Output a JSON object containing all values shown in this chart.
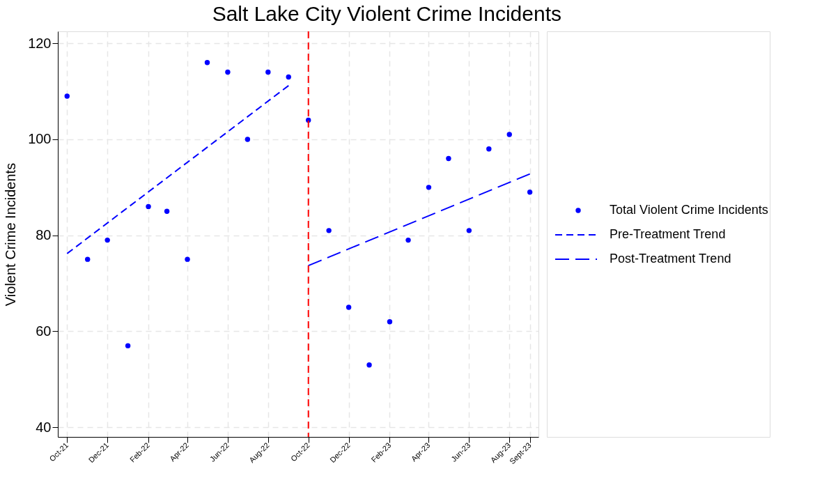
{
  "chart_data": {
    "type": "scatter",
    "title": "Salt Lake City Violent Crime Incidents",
    "ylabel": "Violent Crime Incidents",
    "x": [
      "2021-10",
      "2021-11",
      "2021-12",
      "2022-01",
      "2022-02",
      "2022-03",
      "2022-04",
      "2022-05",
      "2022-06",
      "2022-07",
      "2022-08",
      "2022-09",
      "2022-10",
      "2022-11",
      "2022-12",
      "2023-01",
      "2023-02",
      "2023-03",
      "2023-04",
      "2023-05",
      "2023-06",
      "2023-07",
      "2023-08",
      "2023-09"
    ],
    "series": [
      {
        "name": "Total Violent Crime Incidents",
        "color": "#0000ff",
        "marker": "circle",
        "values": [
          109,
          75,
          79,
          57,
          86,
          85,
          75,
          116,
          114,
          100,
          114,
          113,
          104,
          81,
          65,
          53,
          62,
          79,
          90,
          96,
          81,
          98,
          101,
          89
        ]
      },
      {
        "name": "Pre-Treatment Trend",
        "type": "line",
        "color": "#0000ff",
        "line_style": "dashed",
        "x": [
          "2021-10",
          "2022-09"
        ],
        "values": [
          76.2,
          111.2
        ]
      },
      {
        "name": "Post-Treatment Trend",
        "type": "line",
        "color": "#0000ff",
        "line_style": "dashed",
        "x": [
          "2022-10",
          "2023-09"
        ],
        "values": [
          73.7,
          92.8
        ]
      }
    ],
    "xlim": [
      "2021-09-17",
      "2023-09-14"
    ],
    "xticks": [
      {
        "value": "2021-10",
        "label": "Oct-21"
      },
      {
        "value": "2021-12",
        "label": "Dec-21"
      },
      {
        "value": "2022-02",
        "label": "Feb-22"
      },
      {
        "value": "2022-04",
        "label": "Apr-22"
      },
      {
        "value": "2022-06",
        "label": "Jun-22"
      },
      {
        "value": "2022-08",
        "label": "Aug-22"
      },
      {
        "value": "2022-10",
        "label": "Oct-22"
      },
      {
        "value": "2022-12",
        "label": "Dec-22"
      },
      {
        "value": "2023-02",
        "label": "Feb-23"
      },
      {
        "value": "2023-04",
        "label": "Apr-23"
      },
      {
        "value": "2023-06",
        "label": "Jun-23"
      },
      {
        "value": "2023-08",
        "label": "Aug-23"
      },
      {
        "value": "2023-09",
        "label": "Sept-23"
      }
    ],
    "ylim": [
      38,
      122.5
    ],
    "yticks": [
      40,
      60,
      80,
      100,
      120
    ],
    "ref_lines": [
      {
        "axis": "x",
        "value": "2022-10",
        "color": "#ff0000",
        "line_style": "dashed"
      }
    ],
    "grid": true,
    "legend": "right"
  }
}
